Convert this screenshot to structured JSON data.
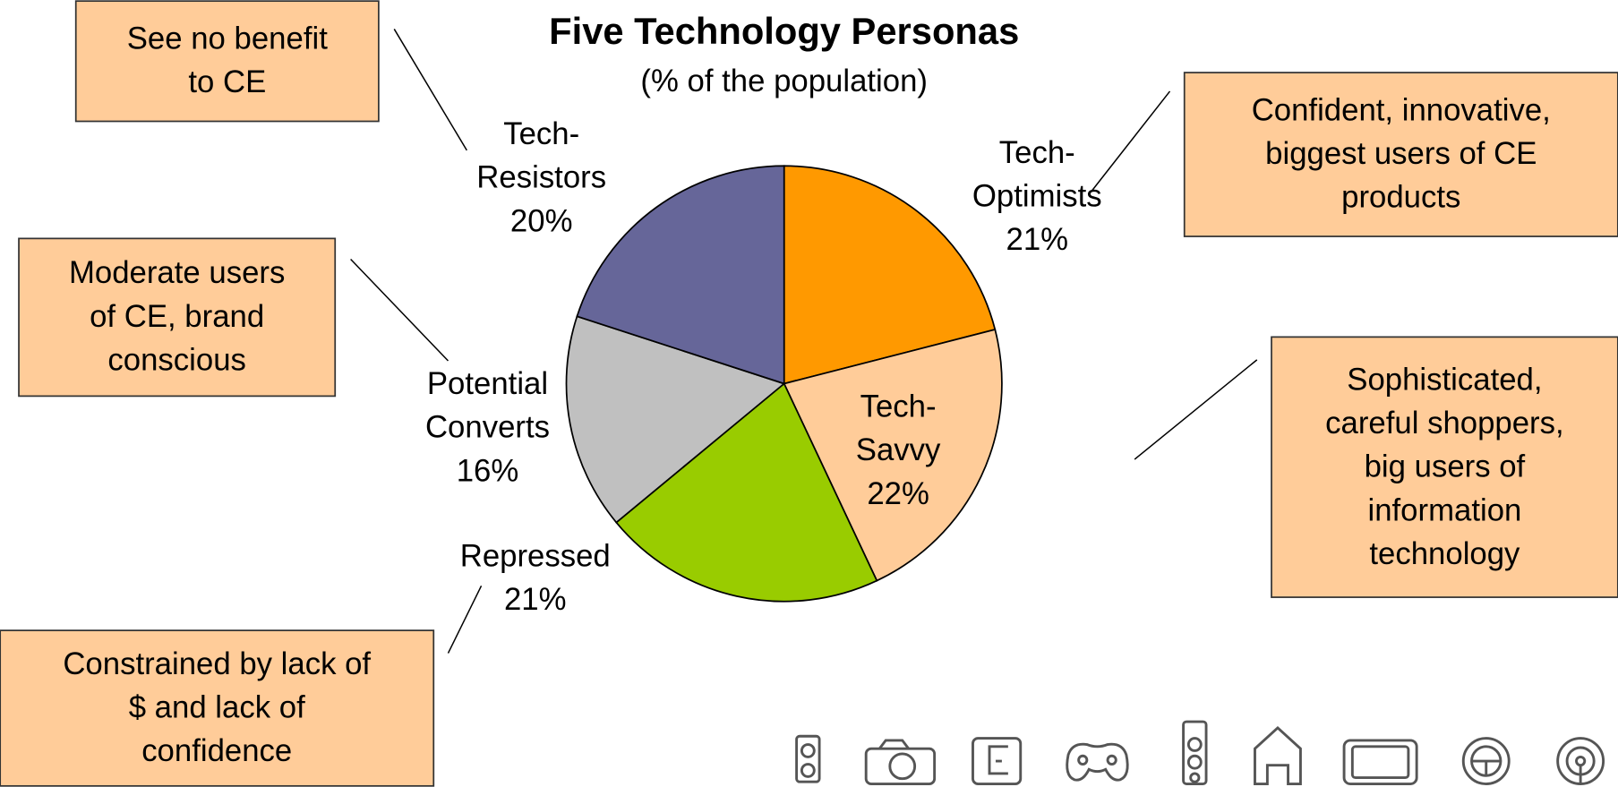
{
  "chart_data": {
    "type": "pie",
    "title": "Five Technology Personas",
    "subtitle": "(% of the population)",
    "categories": [
      "Tech-Optimists",
      "Tech-Savvy",
      "Repressed",
      "Potential Converts",
      "Tech-Resistors"
    ],
    "values": [
      21,
      22,
      21,
      16,
      20
    ],
    "value_labels": [
      "21%",
      "22%",
      "21%",
      "16%",
      "20%"
    ],
    "colors": [
      "#FF9900",
      "#FFCC99",
      "#99CC00",
      "#C0C0C0",
      "#666699"
    ],
    "annotations": [
      {
        "lines": [
          "Confident, innovative,",
          "biggest users of CE",
          "products"
        ]
      },
      {
        "lines": [
          "Sophisticated,",
          "careful shoppers,",
          "big users of",
          "information",
          "technology"
        ]
      },
      {
        "lines": [
          "Constrained by lack of",
          "$ and lack of",
          "confidence"
        ]
      },
      {
        "lines": [
          "Moderate users",
          "of CE, brand",
          "conscious"
        ]
      },
      {
        "lines": [
          "See no benefit",
          "to CE"
        ]
      }
    ]
  }
}
